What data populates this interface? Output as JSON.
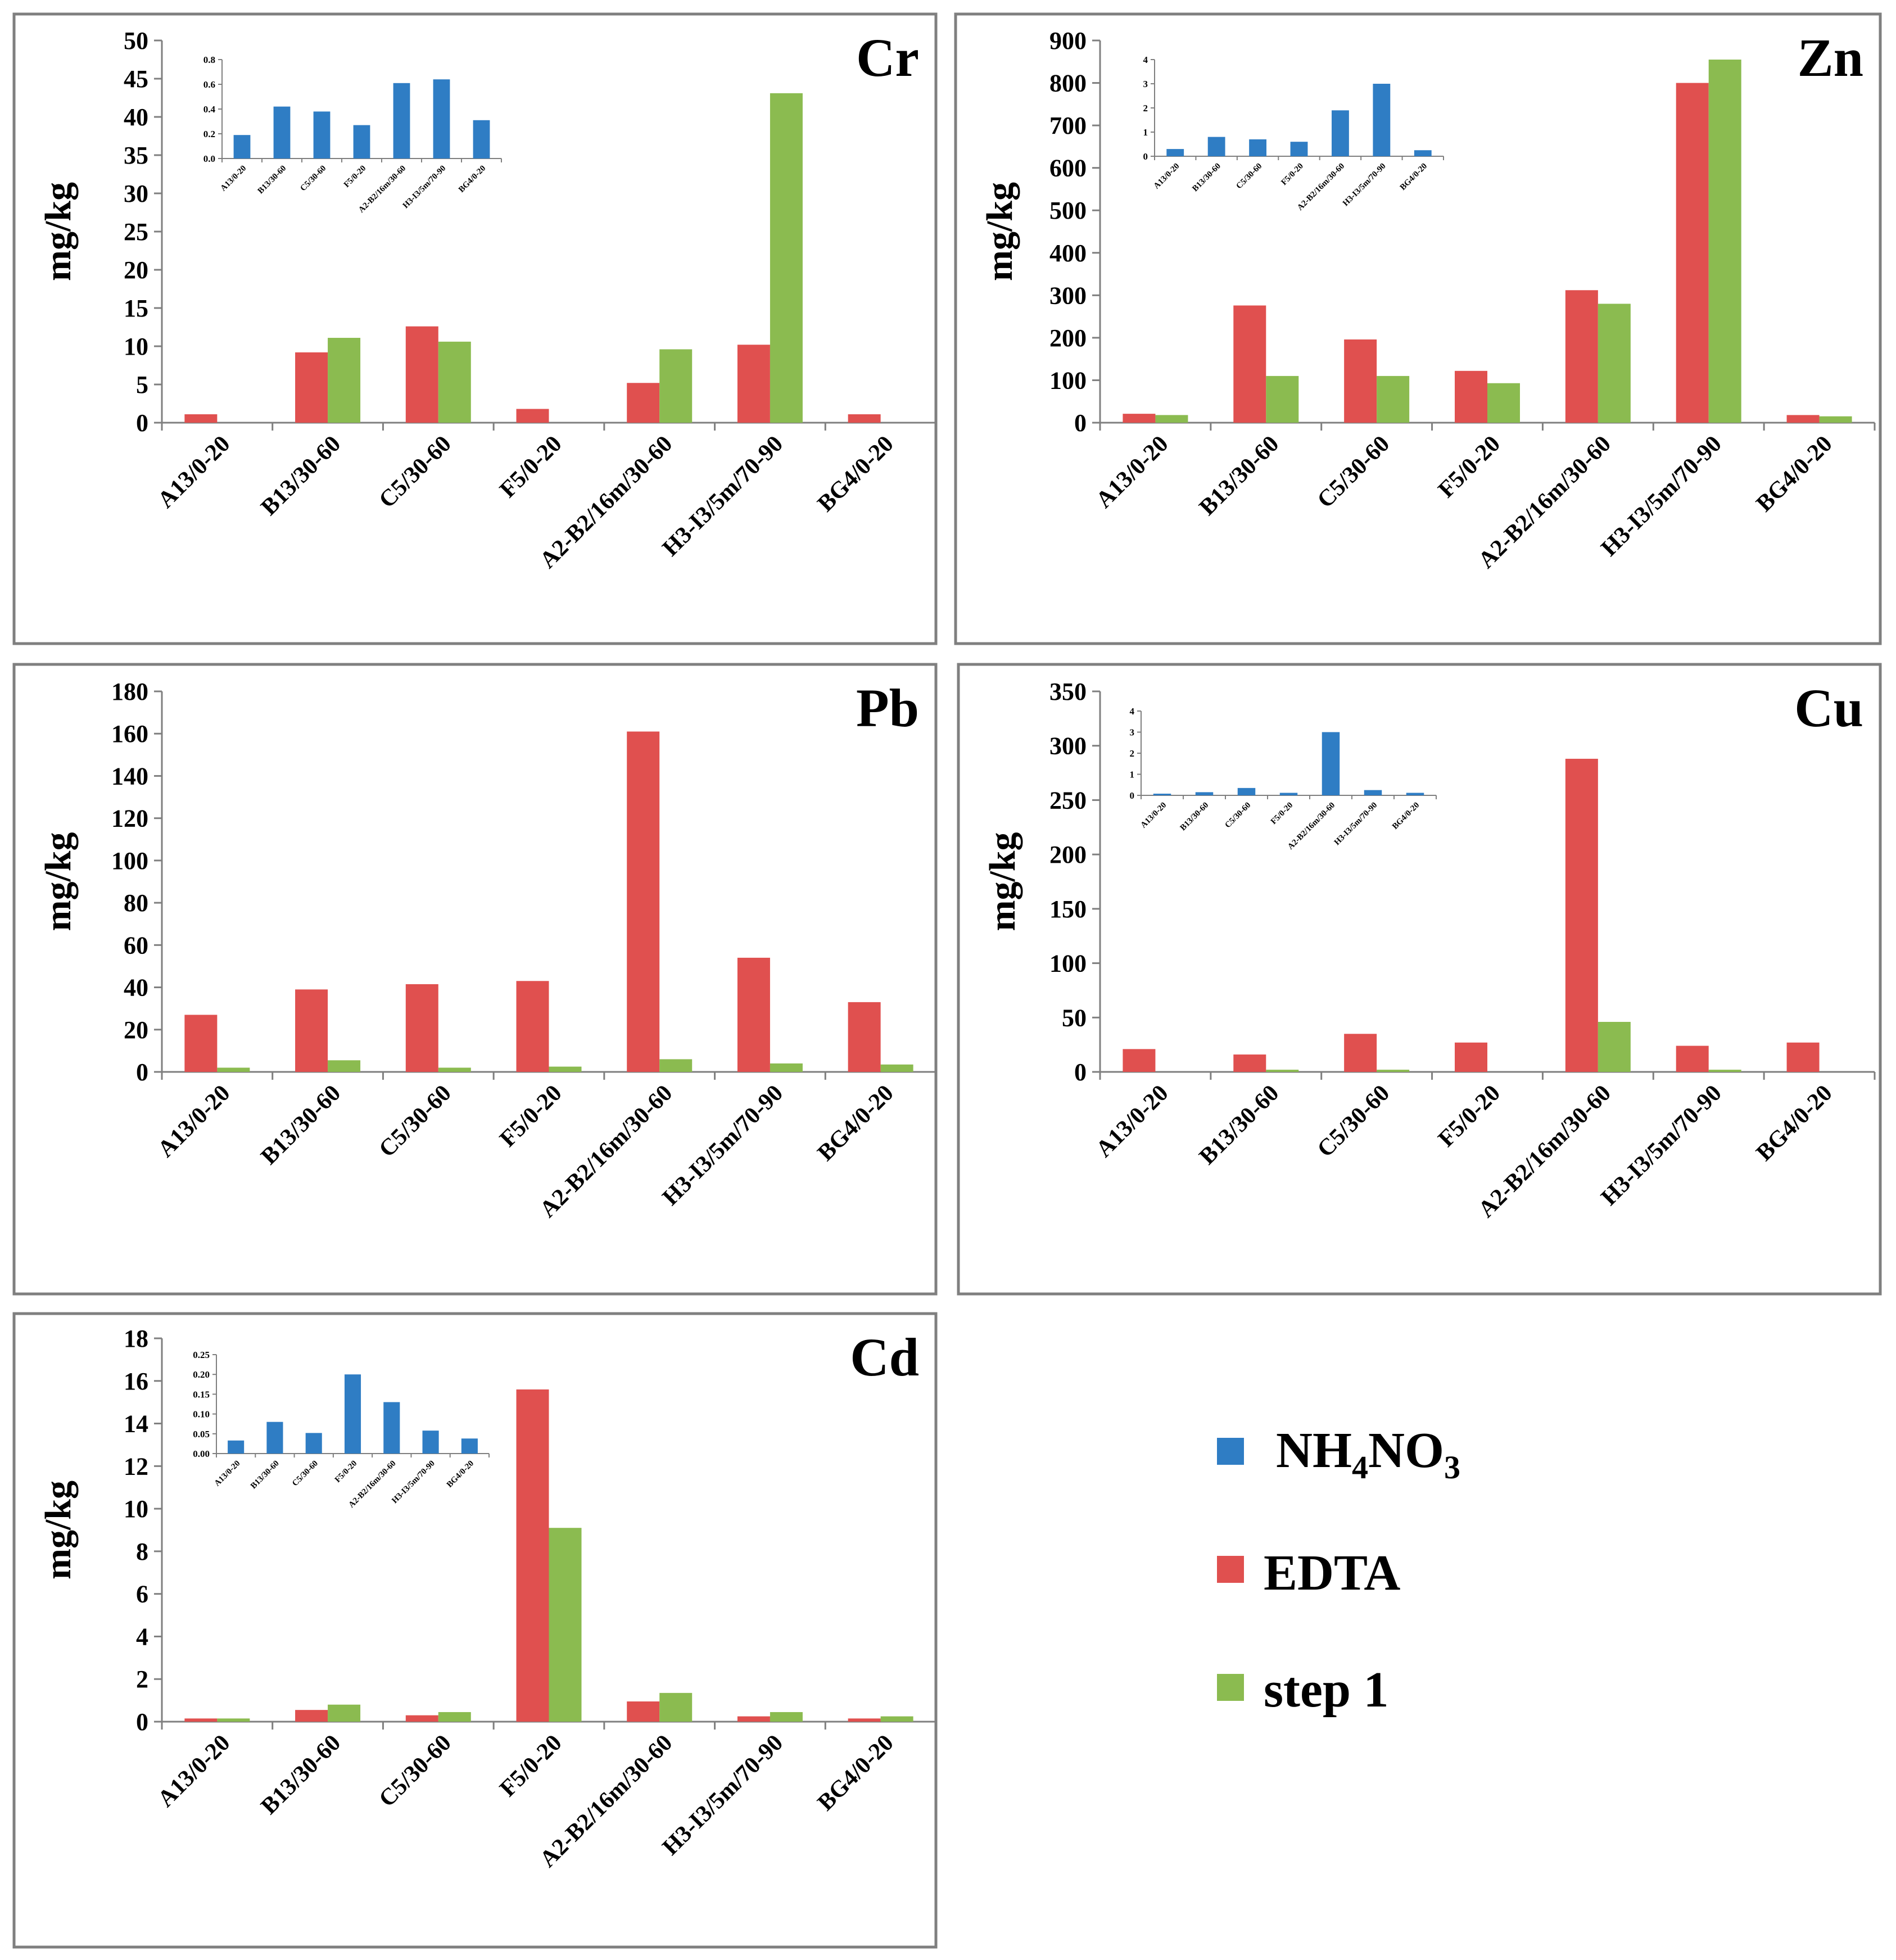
{
  "colors": {
    "nh4no3": "#2F7DC4",
    "edta": "#E0504F",
    "step1": "#8BBB50",
    "frame": "#7F7F7F",
    "axis": "#7F7F7F"
  },
  "legend": {
    "items": [
      {
        "key": "nh4no3",
        "label_main": "NH",
        "sub1": "4",
        "mid": "NO",
        "sub2": "3"
      },
      {
        "key": "edta",
        "label": "EDTA"
      },
      {
        "key": "step1",
        "label": "step 1"
      }
    ]
  },
  "chart_data": [
    {
      "type": "bar",
      "id": "cr",
      "title": "Cr",
      "ylabel": "mg/kg",
      "ylim": [
        0,
        50
      ],
      "yticks": [
        0,
        5,
        10,
        15,
        20,
        25,
        30,
        35,
        40,
        45,
        50
      ],
      "categories": [
        "A13/0-20",
        "B13/30-60",
        "C5/30-60",
        "F5/0-20",
        "A2-B2/16m/30-60",
        "H3-I3/5m/70-90",
        "BG4/0-20"
      ],
      "series": [
        {
          "name": "EDTA",
          "key": "edta",
          "values": [
            1.1,
            9.2,
            12.6,
            1.8,
            5.2,
            10.2,
            1.1
          ]
        },
        {
          "name": "step 1",
          "key": "step1",
          "values": [
            0,
            11.1,
            10.6,
            0,
            9.6,
            43.1,
            0
          ]
        }
      ],
      "inset": {
        "ylim": [
          0,
          0.8
        ],
        "yticks": [
          "0.0",
          "0.2",
          "0.4",
          "0.6",
          "0.8"
        ],
        "categories": [
          "A13/0-20",
          "B13/30-60",
          "C5/30-60",
          "F5/0-20",
          "A2-B2/16m/30-60",
          "H3-I3/5m/70-90",
          "BG4/0-20"
        ],
        "series": [
          {
            "name": "NH4NO3",
            "key": "nh4no3",
            "values": [
              0.19,
              0.42,
              0.38,
              0.27,
              0.61,
              0.64,
              0.31
            ]
          }
        ]
      }
    },
    {
      "type": "bar",
      "id": "zn",
      "title": "Zn",
      "ylabel": "mg/kg",
      "ylim": [
        0,
        900
      ],
      "yticks": [
        0,
        100,
        200,
        300,
        400,
        500,
        600,
        700,
        800,
        900
      ],
      "categories": [
        "A13/0-20",
        "B13/30-60",
        "C5/30-60",
        "F5/0-20",
        "A2-B2/16m/30-60",
        "H3-I3/5m/70-90",
        "BG4/0-20"
      ],
      "series": [
        {
          "name": "EDTA",
          "key": "edta",
          "values": [
            21,
            276,
            196,
            122,
            312,
            800,
            18
          ]
        },
        {
          "name": "step 1",
          "key": "step1",
          "values": [
            18,
            110,
            110,
            93,
            280,
            855,
            15
          ]
        }
      ],
      "inset": {
        "ylim": [
          0,
          4
        ],
        "yticks": [
          "0",
          "1",
          "2",
          "3",
          "4"
        ],
        "categories": [
          "A13/0-20",
          "B13/30-60",
          "C5/30-60",
          "F5/0-20",
          "A2-B2/16m/30-60",
          "H3-I3/5m/70-90",
          "BG4/0-20"
        ],
        "series": [
          {
            "name": "NH4NO3",
            "key": "nh4no3",
            "values": [
              0.3,
              0.8,
              0.7,
              0.6,
              1.9,
              3.0,
              0.25
            ]
          }
        ]
      }
    },
    {
      "type": "bar",
      "id": "pb",
      "title": "Pb",
      "ylabel": "mg/kg",
      "ylim": [
        0,
        180
      ],
      "yticks": [
        0,
        20,
        40,
        60,
        80,
        100,
        120,
        140,
        160,
        180
      ],
      "categories": [
        "A13/0-20",
        "B13/30-60",
        "C5/30-60",
        "F5/0-20",
        "A2-B2/16m/30-60",
        "H3-I3/5m/70-90",
        "BG4/0-20"
      ],
      "series": [
        {
          "name": "EDTA",
          "key": "edta",
          "values": [
            27,
            39,
            41.5,
            43,
            161,
            54,
            33
          ]
        },
        {
          "name": "step 1",
          "key": "step1",
          "values": [
            2,
            5.5,
            2,
            2.5,
            6,
            4,
            3.5
          ]
        }
      ]
    },
    {
      "type": "bar",
      "id": "cu",
      "title": "Cu",
      "ylabel": "mg/kg",
      "ylim": [
        0,
        350
      ],
      "yticks": [
        0,
        50,
        100,
        150,
        200,
        250,
        300,
        350
      ],
      "categories": [
        "A13/0-20",
        "B13/30-60",
        "C5/30-60",
        "F5/0-20",
        "A2-B2/16m/30-60",
        "H3-I3/5m/70-90",
        "BG4/0-20"
      ],
      "series": [
        {
          "name": "EDTA",
          "key": "edta",
          "values": [
            21,
            16,
            35,
            27,
            288,
            24,
            27
          ]
        },
        {
          "name": "step 1",
          "key": "step1",
          "values": [
            0,
            2,
            2,
            0,
            46,
            2,
            0
          ]
        }
      ],
      "inset": {
        "ylim": [
          0,
          4
        ],
        "yticks": [
          "0",
          "1",
          "2",
          "3",
          "4"
        ],
        "categories": [
          "A13/0-20",
          "B13/30-60",
          "C5/30-60",
          "F5/0-20",
          "A2-B2/16m/30-60",
          "H3-I3/5m/70-90",
          "BG4/0-20"
        ],
        "series": [
          {
            "name": "NH4NO3",
            "key": "nh4no3",
            "values": [
              0.08,
              0.15,
              0.35,
              0.12,
              3.0,
              0.25,
              0.12
            ]
          }
        ]
      }
    },
    {
      "type": "bar",
      "id": "cd",
      "title": "Cd",
      "ylabel": "mg/kg",
      "ylim": [
        0,
        18
      ],
      "yticks": [
        0,
        2,
        4,
        6,
        8,
        10,
        12,
        14,
        16,
        18
      ],
      "categories": [
        "A13/0-20",
        "B13/30-60",
        "C5/30-60",
        "F5/0-20",
        "A2-B2/16m/30-60",
        "H3-I3/5m/70-90",
        "BG4/0-20"
      ],
      "series": [
        {
          "name": "EDTA",
          "key": "edta",
          "values": [
            0.15,
            0.55,
            0.3,
            15.6,
            0.95,
            0.25,
            0.15
          ]
        },
        {
          "name": "step 1",
          "key": "step1",
          "values": [
            0.15,
            0.8,
            0.45,
            9.1,
            1.35,
            0.45,
            0.25
          ]
        }
      ],
      "inset": {
        "ylim": [
          0,
          0.25
        ],
        "yticks": [
          "0.00",
          "0.05",
          "0.10",
          "0.15",
          "0.20",
          "0.25"
        ],
        "categories": [
          "A13/0-20",
          "B13/30-60",
          "C5/30-60",
          "F5/0-20",
          "A2-B2/16m/30-60",
          "H3-I3/5m/70-90",
          "BG4/0-20"
        ],
        "series": [
          {
            "name": "NH4NO3",
            "key": "nh4no3",
            "values": [
              0.033,
              0.08,
              0.052,
              0.2,
              0.13,
              0.058,
              0.038
            ]
          }
        ]
      }
    }
  ]
}
